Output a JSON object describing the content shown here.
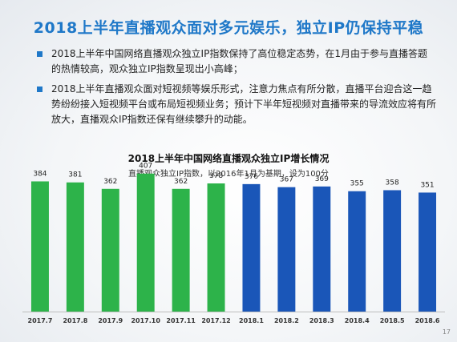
{
  "title": "2018上半年直播观众面对多元娱乐，独立IP仍保持平稳",
  "bullets": [
    "2018上半年中国网络直播观众独立IP指数保持了高位稳定态势，在1月由于参与直播答题的热情较高，观众独立IP指数呈现出小高峰；",
    "2018上半年直播观众面对短视频等娱乐形式，注意力焦点有所分散，直播平台迎合这一趋势纷纷接入短视频平台或布局短视频业务；预计下半年短视频对直播带来的导流效应将有所放大，直播观众IP指数还保有继续攀升的动能。"
  ],
  "page_number": "17",
  "chart_data": {
    "type": "bar",
    "title": "2018上半年中国网络直播观众独立IP增长情况",
    "subtitle": "直播观众独立IP指数，以2016年1月为基期，设为100分",
    "categories": [
      "2017.7",
      "2017.8",
      "2017.9",
      "2017.10",
      "2017.11",
      "2017.12",
      "2018.1",
      "2018.2",
      "2018.3",
      "2018.4",
      "2018.5",
      "2018.6"
    ],
    "values": [
      384,
      381,
      362,
      407,
      362,
      378,
      376,
      367,
      369,
      355,
      358,
      351
    ],
    "colors": [
      "#2db34a",
      "#2db34a",
      "#2db34a",
      "#2db34a",
      "#2db34a",
      "#2db34a",
      "#1a56b8",
      "#1a56b8",
      "#1a56b8",
      "#1a56b8",
      "#1a56b8",
      "#1a56b8"
    ],
    "ylim": [
      0,
      430
    ],
    "grid": false,
    "legend": "none"
  }
}
